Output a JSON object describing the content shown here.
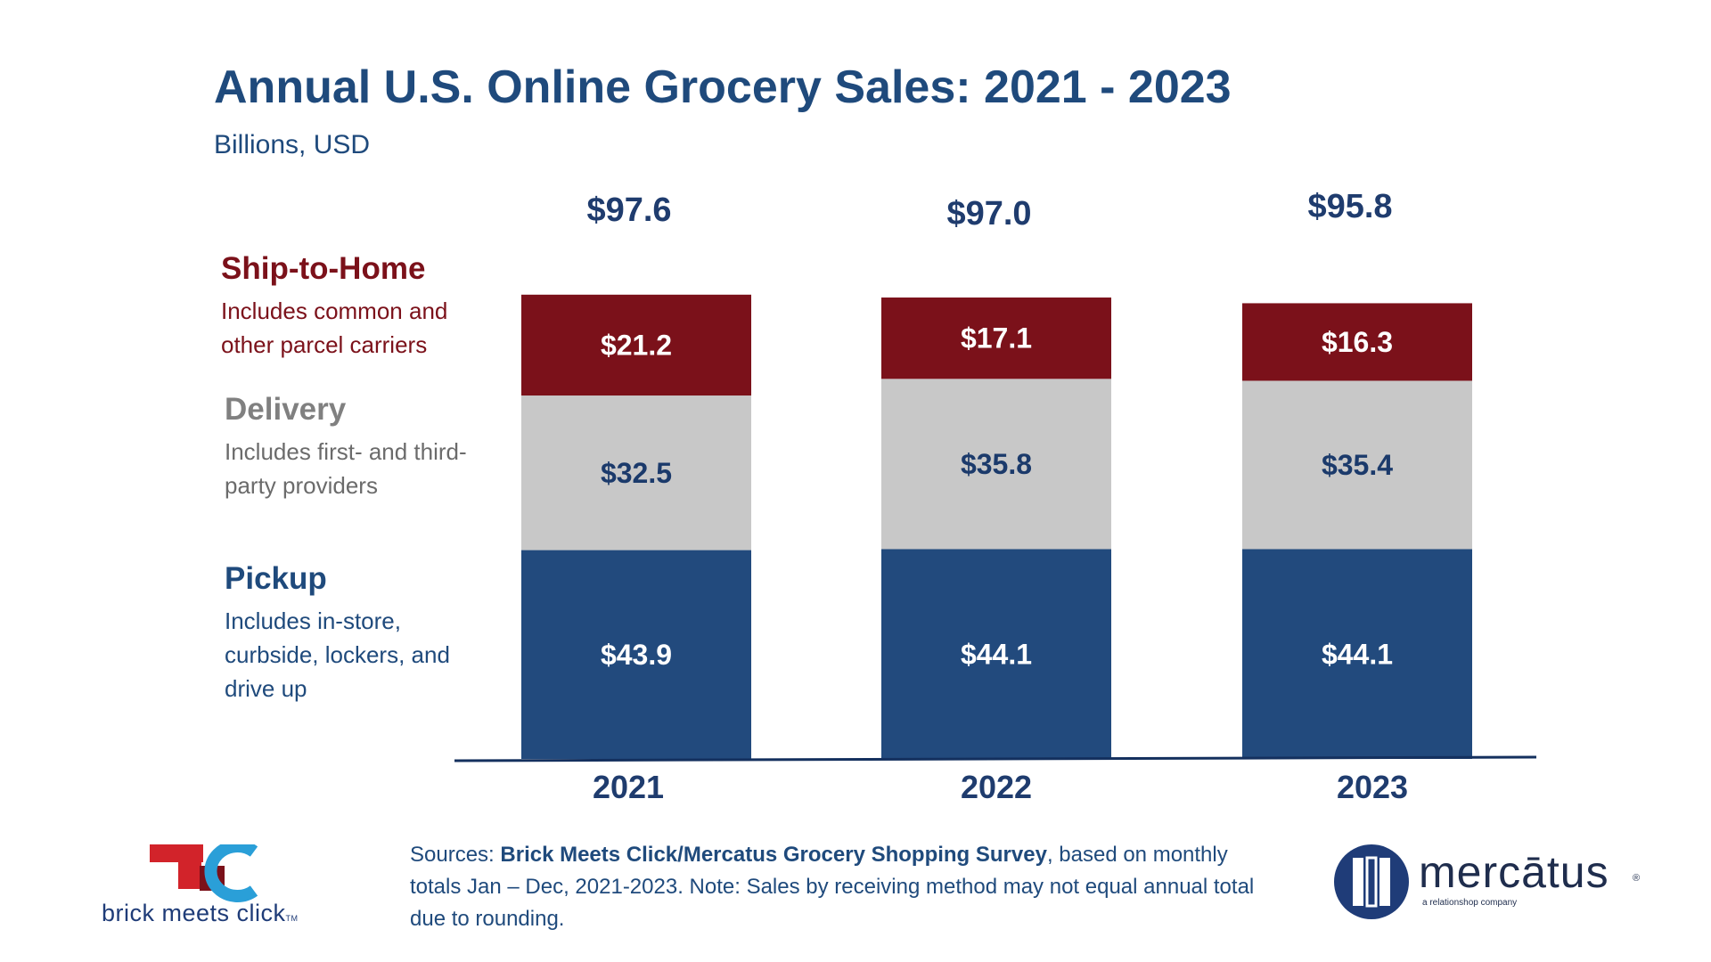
{
  "header": {
    "title": "Annual U.S. Online Grocery Sales: 2021 - 2023",
    "subtitle": "Billions, USD"
  },
  "legend": [
    {
      "label": "Ship-to-Home",
      "desc": "Includes common and other parcel carriers",
      "color": "#7b111a",
      "desc_color": "#7b111a"
    },
    {
      "label": "Delivery",
      "desc": "Includes first- and third-party providers",
      "color": "#808080",
      "desc_color": "#6b6b6b"
    },
    {
      "label": "Pickup",
      "desc": "Includes in-store, curbside, lockers, and drive up",
      "color": "#1f4a7c",
      "desc_color": "#1f4a7c"
    }
  ],
  "chart_data": {
    "type": "bar",
    "stacked": true,
    "categories": [
      "2021",
      "2022",
      "2023"
    ],
    "series": [
      {
        "name": "Pickup",
        "values": [
          43.9,
          44.1,
          44.1
        ],
        "labels": [
          "$43.9",
          "$44.1",
          "$44.1"
        ],
        "color": "#224a7d",
        "label_color": "#ffffff"
      },
      {
        "name": "Delivery",
        "values": [
          32.5,
          35.8,
          35.4
        ],
        "labels": [
          "$32.5",
          "$35.8",
          "$35.4"
        ],
        "color": "#c8c8c8",
        "label_color": "#1b3a6b"
      },
      {
        "name": "Ship-to-Home",
        "values": [
          21.2,
          17.1,
          16.3
        ],
        "labels": [
          "$21.2",
          "$17.1",
          "$16.3"
        ],
        "color": "#7b111a",
        "label_color": "#ffffff"
      }
    ],
    "totals": [
      97.6,
      97.0,
      95.8
    ],
    "total_labels": [
      "$97.6",
      "$97.0",
      "$95.8"
    ],
    "ylim": [
      0,
      100
    ],
    "grid": false,
    "legend_position": "left"
  },
  "footer": {
    "source_prefix": "Sources: ",
    "source_bold": "Brick Meets Click/Mercatus Grocery Shopping Survey",
    "source_rest": ", based on monthly totals Jan – Dec, 2021-2023.  Note: Sales by receiving method may not equal annual total due to rounding."
  },
  "logos": {
    "bmc_text": "brick meets click",
    "bmc_tm": "TM",
    "mercatus_name": "mercātus",
    "mercatus_reg": "®",
    "mercatus_tagline": "a relationshop company"
  }
}
